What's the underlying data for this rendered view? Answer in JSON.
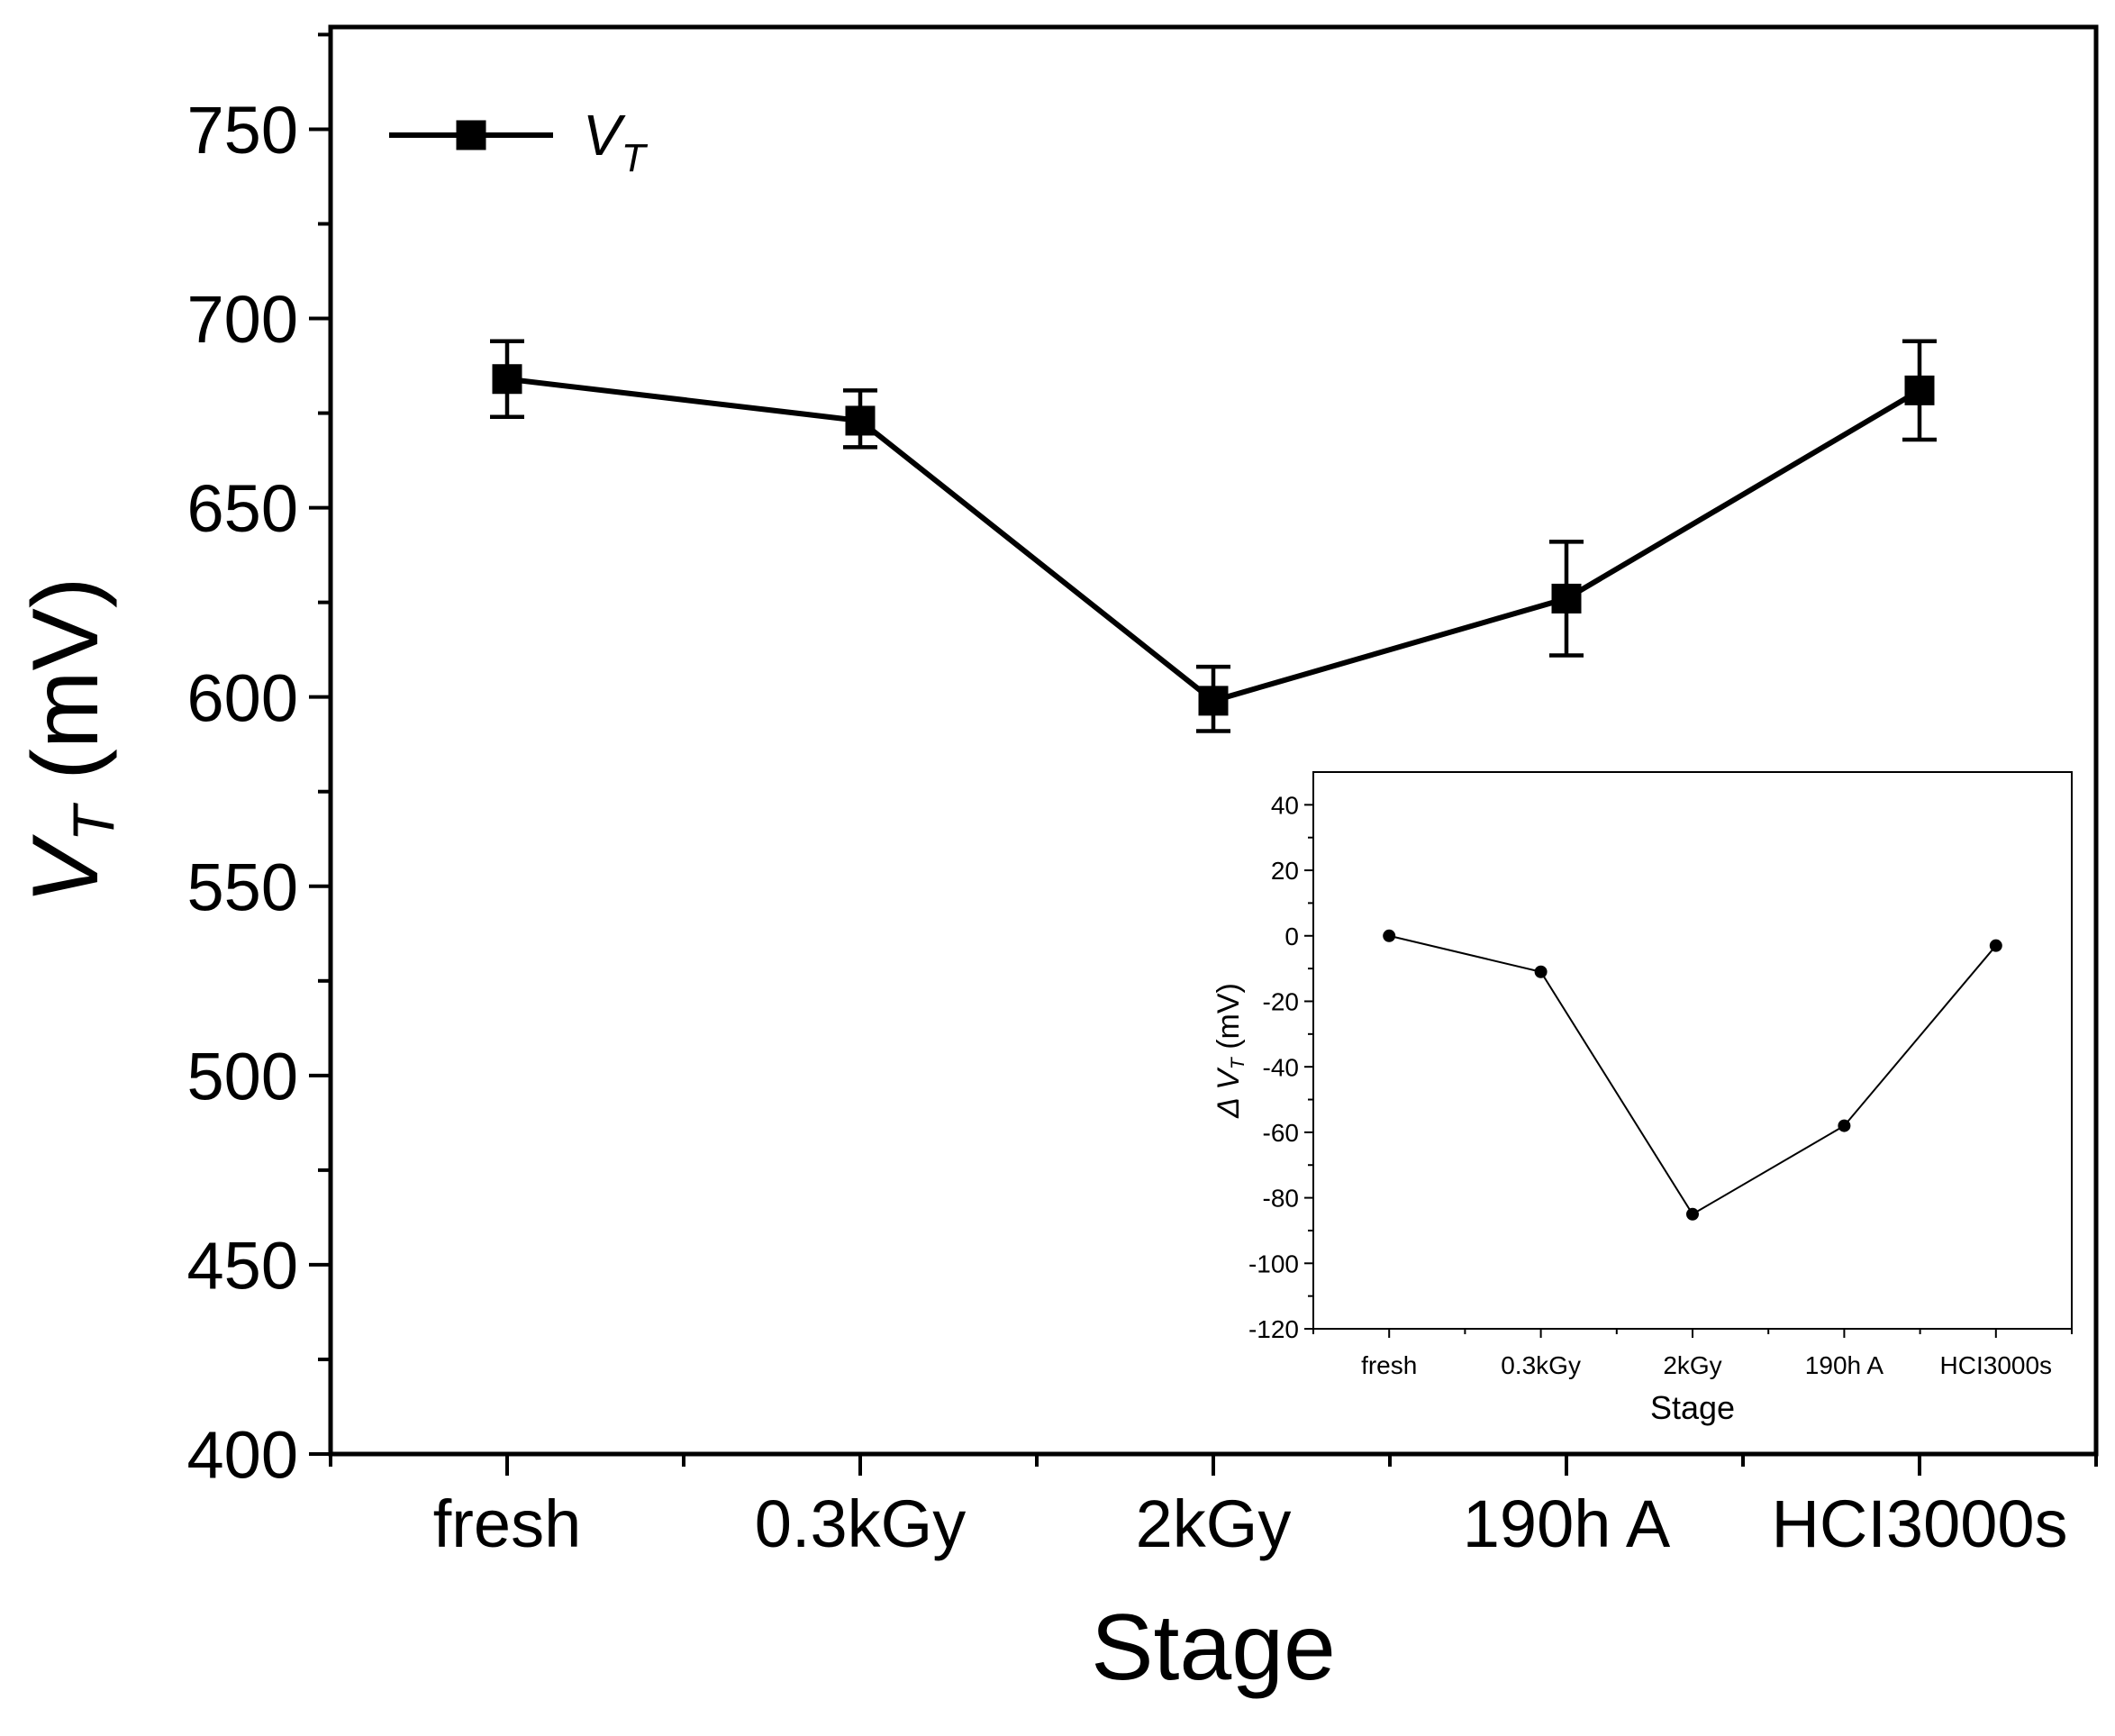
{
  "chart_data": [
    {
      "id": "main",
      "type": "line",
      "title": "",
      "xlabel": "Stage",
      "ylabel_symbol": "V",
      "ylabel_subscript": "T",
      "ylabel_unit": " (mV)",
      "categories": [
        "fresh",
        "0.3kGy",
        "2kGy",
        "190h A",
        "HCI3000s"
      ],
      "ylim": [
        400,
        777
      ],
      "yticks": [
        400,
        450,
        500,
        550,
        600,
        650,
        700,
        750
      ],
      "grid": false,
      "legend": {
        "position": "top-left",
        "symbol": "V",
        "subscript": "T"
      },
      "series": [
        {
          "name": "V_T",
          "marker": "square",
          "values": [
            684,
            673,
            599,
            626,
            681
          ],
          "err_low": [
            674,
            666,
            591,
            611,
            668
          ],
          "err_high": [
            694,
            681,
            608,
            641,
            694
          ]
        }
      ]
    },
    {
      "id": "inset",
      "type": "line",
      "title": "",
      "xlabel": "Stage",
      "ylabel_prefix": "Δ ",
      "ylabel_symbol": "V",
      "ylabel_subscript": "T",
      "ylabel_unit": " (mV)",
      "categories": [
        "fresh",
        "0.3kGy",
        "2kGy",
        "190h A",
        "HCI3000s"
      ],
      "ylim": [
        -120,
        50
      ],
      "yticks": [
        -120,
        -100,
        -80,
        -60,
        -40,
        -20,
        0,
        20,
        40
      ],
      "grid": false,
      "series": [
        {
          "name": "ΔV_T",
          "marker": "circle",
          "values": [
            0,
            -11,
            -85,
            -58,
            -3
          ]
        }
      ]
    }
  ]
}
